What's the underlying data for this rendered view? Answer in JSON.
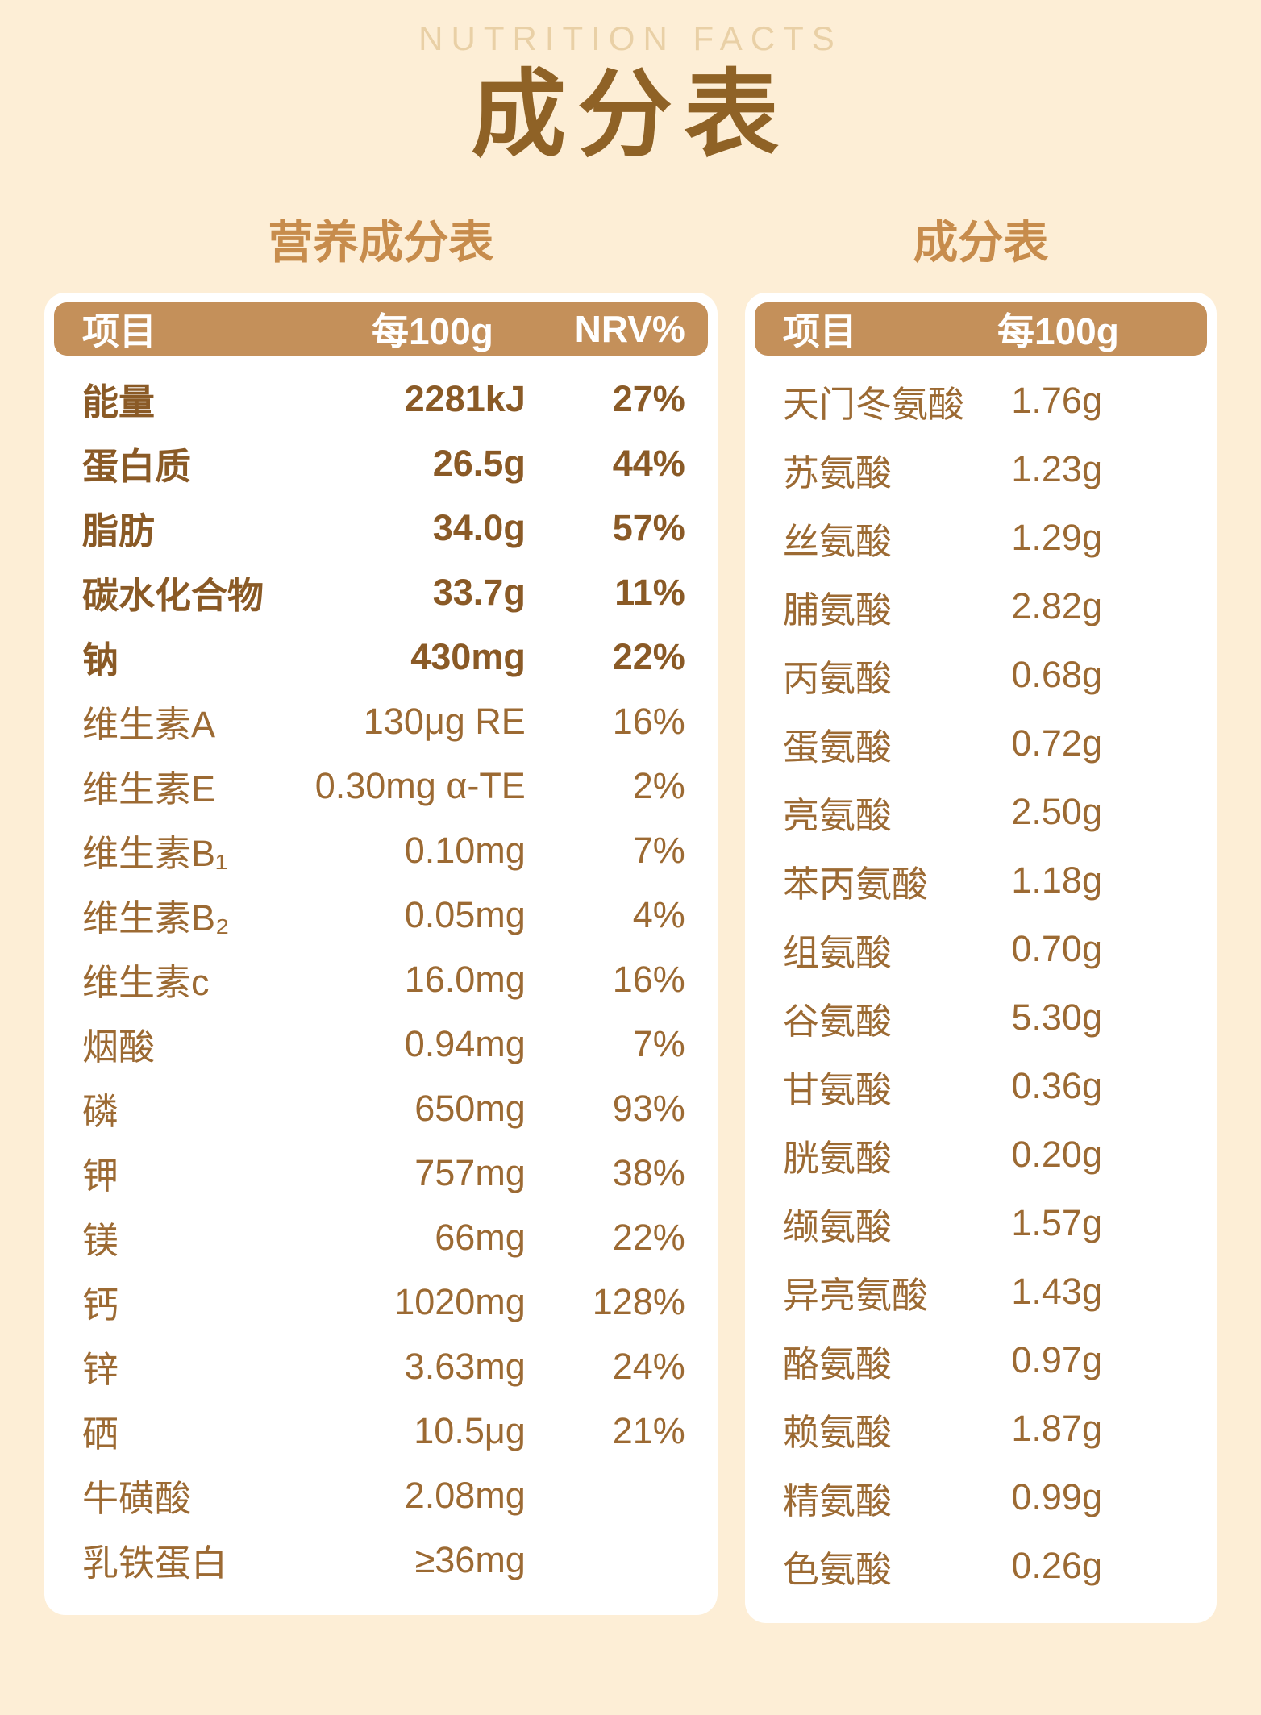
{
  "page": {
    "eyebrow": "NUTRITION FACTS",
    "title": "成分表"
  },
  "nutrition_table": {
    "title": "营养成分表",
    "headers": [
      "项目",
      "每100g",
      "NRV%"
    ],
    "rows": [
      {
        "name": "能量",
        "value": "2281kJ",
        "nrv": "27%",
        "bold": true
      },
      {
        "name": "蛋白质",
        "value": "26.5g",
        "nrv": "44%",
        "bold": true
      },
      {
        "name": "脂肪",
        "value": "34.0g",
        "nrv": "57%",
        "bold": true
      },
      {
        "name": "碳水化合物",
        "value": "33.7g",
        "nrv": "11%",
        "bold": true
      },
      {
        "name": "钠",
        "value": "430mg",
        "nrv": "22%",
        "bold": true
      },
      {
        "name": "维生素A",
        "value": "130μg RE",
        "nrv": "16%",
        "bold": false
      },
      {
        "name": "维生素E",
        "value": "0.30mg α-TE",
        "nrv": "2%",
        "bold": false
      },
      {
        "name": "维生素B₁",
        "value": "0.10mg",
        "nrv": "7%",
        "bold": false
      },
      {
        "name": "维生素B₂",
        "value": "0.05mg",
        "nrv": "4%",
        "bold": false
      },
      {
        "name": "维生素c",
        "value": "16.0mg",
        "nrv": "16%",
        "bold": false
      },
      {
        "name": "烟酸",
        "value": "0.94mg",
        "nrv": "7%",
        "bold": false
      },
      {
        "name": "磷",
        "value": "650mg",
        "nrv": "93%",
        "bold": false
      },
      {
        "name": "钾",
        "value": "757mg",
        "nrv": "38%",
        "bold": false
      },
      {
        "name": "镁",
        "value": "66mg",
        "nrv": "22%",
        "bold": false
      },
      {
        "name": "钙",
        "value": "1020mg",
        "nrv": "128%",
        "bold": false
      },
      {
        "name": "锌",
        "value": "3.63mg",
        "nrv": "24%",
        "bold": false
      },
      {
        "name": "硒",
        "value": "10.5μg",
        "nrv": "21%",
        "bold": false
      },
      {
        "name": "牛磺酸",
        "value": "2.08mg",
        "nrv": "",
        "bold": false
      },
      {
        "name": "乳铁蛋白",
        "value": "≥36mg",
        "nrv": "",
        "bold": false
      }
    ]
  },
  "amino_table": {
    "title": "成分表",
    "headers": [
      "项目",
      "每100g"
    ],
    "rows": [
      {
        "name": "天门冬氨酸",
        "value": "1.76g"
      },
      {
        "name": "苏氨酸",
        "value": "1.23g"
      },
      {
        "name": "丝氨酸",
        "value": "1.29g"
      },
      {
        "name": "脯氨酸",
        "value": "2.82g"
      },
      {
        "name": "丙氨酸",
        "value": "0.68g"
      },
      {
        "name": "蛋氨酸",
        "value": "0.72g"
      },
      {
        "name": "亮氨酸",
        "value": "2.50g"
      },
      {
        "name": "苯丙氨酸",
        "value": "1.18g"
      },
      {
        "name": "组氨酸",
        "value": "0.70g"
      },
      {
        "name": "谷氨酸",
        "value": "5.30g"
      },
      {
        "name": "甘氨酸",
        "value": "0.36g"
      },
      {
        "name": "胱氨酸",
        "value": "0.20g"
      },
      {
        "name": "缬氨酸",
        "value": "1.57g"
      },
      {
        "name": "异亮氨酸",
        "value": "1.43g"
      },
      {
        "name": "酪氨酸",
        "value": "0.97g"
      },
      {
        "name": "赖氨酸",
        "value": "1.87g"
      },
      {
        "name": "精氨酸",
        "value": "0.99g"
      },
      {
        "name": "色氨酸",
        "value": "0.26g"
      }
    ]
  },
  "colors": {
    "background": "#fdeed6",
    "card": "#ffffff",
    "header_bar": "#c4905a",
    "row_text": "#9c6a33",
    "row_text_bold": "#8a5a26",
    "main_title": "#8f6226",
    "table_title": "#c78c4c",
    "eyebrow": "#e9d0a6"
  }
}
